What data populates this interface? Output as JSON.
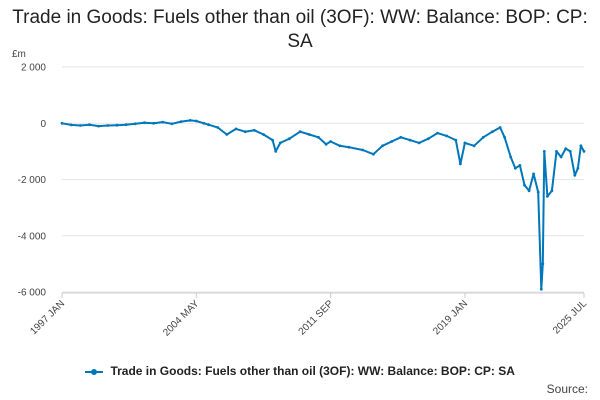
{
  "chart_data": {
    "type": "line",
    "title": "Trade in Goods: Fuels other than oil (3OF): WW: Balance: BOP: CP: SA",
    "ylabel": "£m",
    "ylim": [
      -6000,
      2000
    ],
    "yticks": [
      2000,
      0,
      -2000,
      -4000,
      -6000
    ],
    "ytick_labels": [
      "2 000",
      "0",
      "-2 000",
      "-4 000",
      "-6 000"
    ],
    "xlim": [
      "1997-01",
      "2025-07"
    ],
    "xticks": [
      "1997-01",
      "2004-05",
      "2011-09",
      "2019-01",
      "2025-07"
    ],
    "xtick_labels": [
      "1997 JAN",
      "2004 MAY",
      "2011 SEP",
      "2019 JAN",
      "2025 JUL"
    ],
    "grid": true,
    "legend_position": "bottom",
    "series": [
      {
        "name": "Trade in Goods: Fuels other than oil (3OF): WW: Balance: BOP: CP: SA",
        "color": "#0077bb",
        "points": [
          [
            "1997-01",
            0
          ],
          [
            "1997-07",
            -60
          ],
          [
            "1998-01",
            -80
          ],
          [
            "1998-07",
            -50
          ],
          [
            "1999-01",
            -100
          ],
          [
            "1999-07",
            -80
          ],
          [
            "2000-01",
            -70
          ],
          [
            "2000-07",
            -50
          ],
          [
            "2001-01",
            -20
          ],
          [
            "2001-07",
            20
          ],
          [
            "2002-01",
            0
          ],
          [
            "2002-07",
            40
          ],
          [
            "2003-01",
            -20
          ],
          [
            "2003-07",
            60
          ],
          [
            "2004-01",
            100
          ],
          [
            "2004-05",
            80
          ],
          [
            "2004-10",
            0
          ],
          [
            "2005-01",
            -50
          ],
          [
            "2005-07",
            -150
          ],
          [
            "2006-01",
            -400
          ],
          [
            "2006-07",
            -200
          ],
          [
            "2007-01",
            -300
          ],
          [
            "2007-07",
            -250
          ],
          [
            "2008-01",
            -400
          ],
          [
            "2008-07",
            -600
          ],
          [
            "2008-09",
            -1000
          ],
          [
            "2008-12",
            -700
          ],
          [
            "2009-06",
            -550
          ],
          [
            "2010-01",
            -300
          ],
          [
            "2010-07",
            -400
          ],
          [
            "2011-01",
            -500
          ],
          [
            "2011-06",
            -750
          ],
          [
            "2011-09",
            -650
          ],
          [
            "2012-03",
            -800
          ],
          [
            "2012-09",
            -850
          ],
          [
            "2013-06",
            -950
          ],
          [
            "2014-01",
            -1100
          ],
          [
            "2014-07",
            -800
          ],
          [
            "2015-01",
            -650
          ],
          [
            "2015-07",
            -500
          ],
          [
            "2016-01",
            -600
          ],
          [
            "2016-07",
            -700
          ],
          [
            "2017-01",
            -550
          ],
          [
            "2017-07",
            -350
          ],
          [
            "2018-01",
            -450
          ],
          [
            "2018-07",
            -600
          ],
          [
            "2018-10",
            -1450
          ],
          [
            "2019-01",
            -700
          ],
          [
            "2019-07",
            -800
          ],
          [
            "2020-01",
            -500
          ],
          [
            "2020-07",
            -300
          ],
          [
            "2020-12",
            -150
          ],
          [
            "2021-03",
            -500
          ],
          [
            "2021-07",
            -1200
          ],
          [
            "2021-10",
            -1600
          ],
          [
            "2022-01",
            -1500
          ],
          [
            "2022-04",
            -2200
          ],
          [
            "2022-07",
            -2400
          ],
          [
            "2022-10",
            -1800
          ],
          [
            "2023-01",
            -2450
          ],
          [
            "2023-03",
            -5900
          ],
          [
            "2023-04",
            -5000
          ],
          [
            "2023-05",
            -1000
          ],
          [
            "2023-07",
            -2600
          ],
          [
            "2023-10",
            -2400
          ],
          [
            "2024-01",
            -1000
          ],
          [
            "2024-04",
            -1200
          ],
          [
            "2024-07",
            -900
          ],
          [
            "2024-10",
            -1000
          ],
          [
            "2025-01",
            -1850
          ],
          [
            "2025-03",
            -1600
          ],
          [
            "2025-05",
            -800
          ],
          [
            "2025-07",
            -1000
          ]
        ]
      }
    ],
    "source_label": "Source:"
  }
}
